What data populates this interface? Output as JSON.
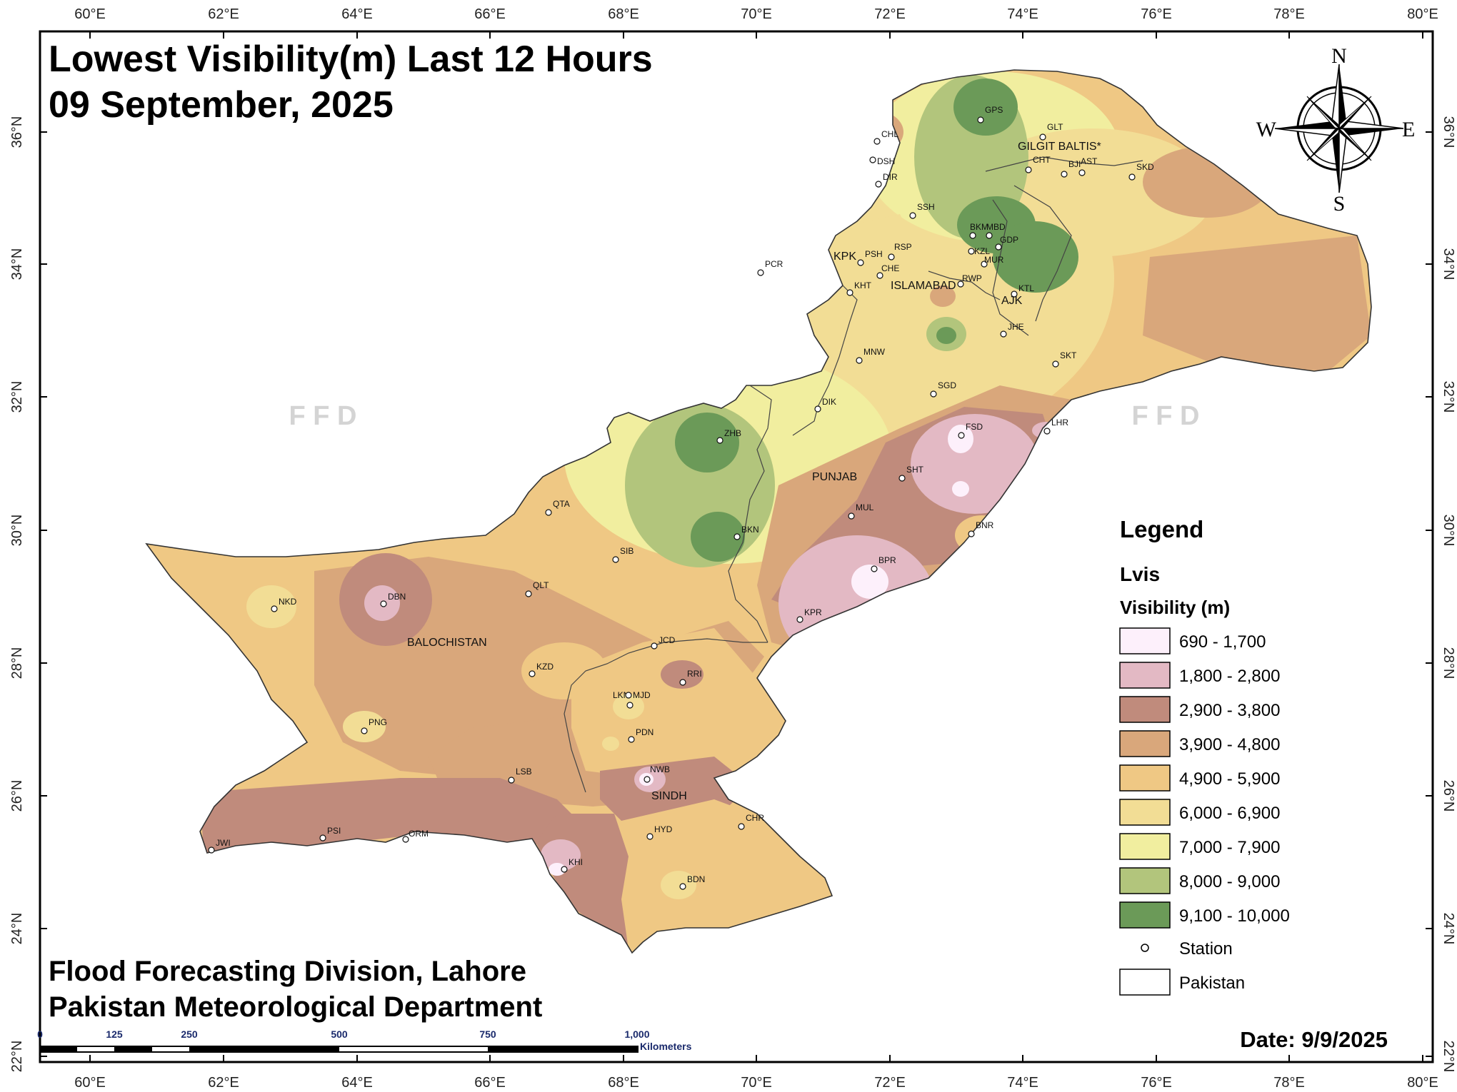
{
  "title_line1": "Lowest Visibility(m) Last 12 Hours",
  "title_line2": "09 September, 2025",
  "credit_line1": "Flood Forecasting Division, Lahore",
  "credit_line2": "Pakistan Meteorological Department",
  "date_text": "Date: 9/9/2025",
  "watermark": "F F D",
  "compass": {
    "n": "N",
    "s": "S",
    "e": "E",
    "w": "W"
  },
  "lon_ticks": [
    "60°E",
    "62°E",
    "64°E",
    "66°E",
    "68°E",
    "70°E",
    "72°E",
    "74°E",
    "76°E",
    "78°E",
    "80°E"
  ],
  "lat_ticks": [
    "36°N",
    "34°N",
    "32°N",
    "30°N",
    "28°N",
    "26°N",
    "24°N",
    "22°N"
  ],
  "scale_bar": {
    "labels": [
      "0",
      "125",
      "250",
      "500",
      "750",
      "1,000"
    ],
    "unit": "Kilometers"
  },
  "legend": {
    "title": "Legend",
    "layer": "Lvis",
    "field": "Visibility (m)",
    "classes": [
      {
        "label": "690 - 1,700",
        "color": "#fdf0fb"
      },
      {
        "label": "1,800 - 2,800",
        "color": "#e3b9c4"
      },
      {
        "label": "2,900 - 3,800",
        "color": "#c08b7c"
      },
      {
        "label": "3,900 - 4,800",
        "color": "#d9a77b"
      },
      {
        "label": "4,900 - 5,900",
        "color": "#efc884"
      },
      {
        "label": "6,000 - 6,900",
        "color": "#f2dd95"
      },
      {
        "label": "7,000 - 7,900",
        "color": "#f1ee9f"
      },
      {
        "label": "8,000 - 9,000",
        "color": "#b2c57c"
      },
      {
        "label": "9,100 - 10,000",
        "color": "#6b9a58"
      }
    ],
    "station_label": "Station",
    "boundary_label": "Pakistan"
  },
  "regions": [
    "GILGIT BALTIS*",
    "KPK",
    "ISLAMABAD",
    "AJK",
    "PUNJAB",
    "BALOCHISTAN",
    "SINDH"
  ],
  "stations": [
    "GPS",
    "GLT",
    "CHL",
    "DSH",
    "CHT",
    "BJI",
    "AST",
    "SKD",
    "DIR",
    "SSH",
    "BKM",
    "MBD",
    "KZL",
    "GDP",
    "MUR",
    "PCR",
    "PSH",
    "RSP",
    "CHE",
    "KHT",
    "RWP",
    "KTL",
    "JHE",
    "MNW",
    "SKT",
    "SGD",
    "DIK",
    "FSD",
    "LHR",
    "ZHB",
    "SHT",
    "QTA",
    "MUL",
    "BKN",
    "BNR",
    "SIB",
    "BPR",
    "NKD",
    "DBN",
    "QLT",
    "KPR",
    "JCD",
    "KZD",
    "RRI",
    "LKN",
    "MJD",
    "PNG",
    "PDN",
    "NWB",
    "LSB",
    "HYD",
    "CHR",
    "PSI",
    "ORM",
    "JWI",
    "KHI",
    "BDN"
  ]
}
